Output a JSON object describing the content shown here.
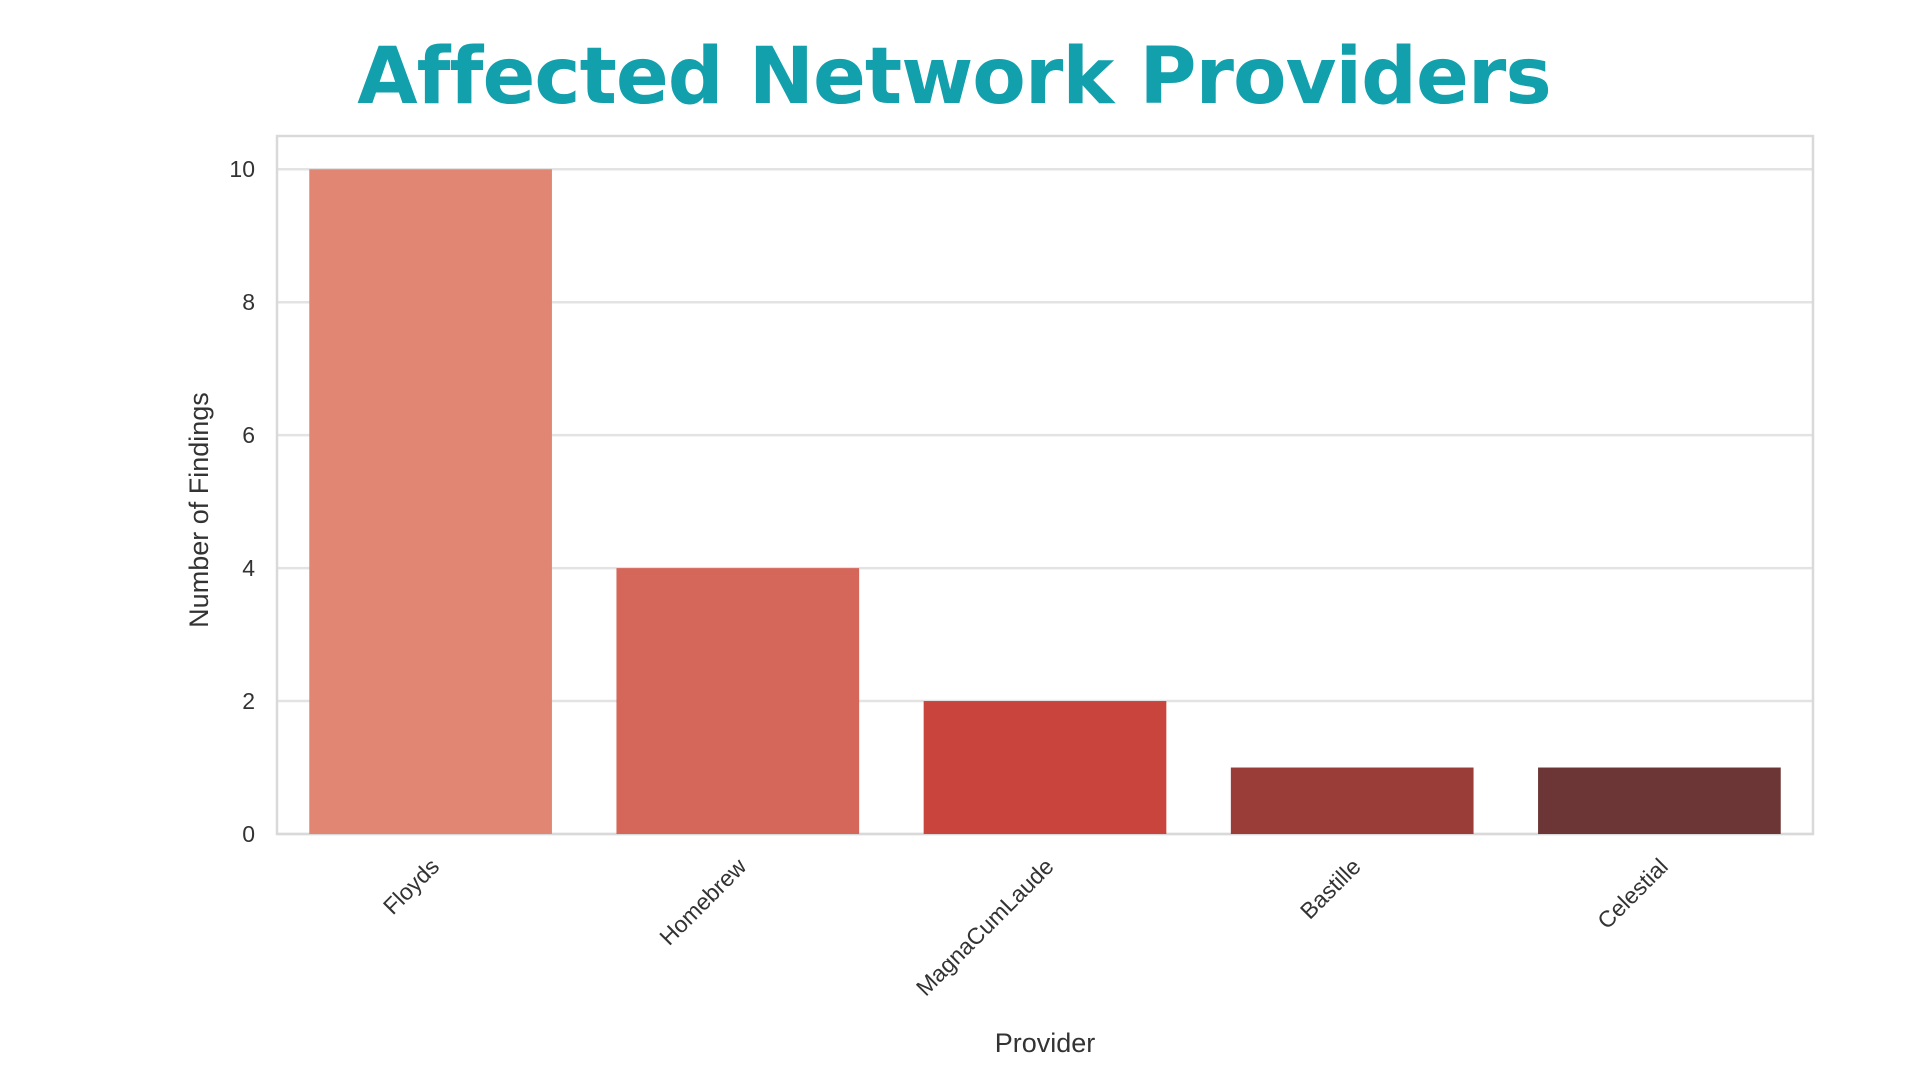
{
  "page": {
    "title": "Affected Network Providers",
    "title_color": "#11a0ac"
  },
  "chart_data": {
    "type": "bar",
    "title": "",
    "xlabel": "Provider",
    "ylabel": "Number of Findings",
    "categories": [
      "Floyds",
      "Homebrew",
      "MagnaCumLaude",
      "Bastille",
      "Celestial"
    ],
    "values": [
      10,
      4,
      2,
      1,
      1
    ],
    "colors": [
      "#e08673",
      "#d4665a",
      "#c8443d",
      "#9a3d38",
      "#6b3635"
    ],
    "yticks": [
      0,
      2,
      4,
      6,
      8,
      10
    ],
    "ylim": [
      0,
      10.5
    ],
    "grid": true,
    "legend": "none",
    "frame_color": "#d9d9d9",
    "grid_color": "#e3e3e3"
  }
}
